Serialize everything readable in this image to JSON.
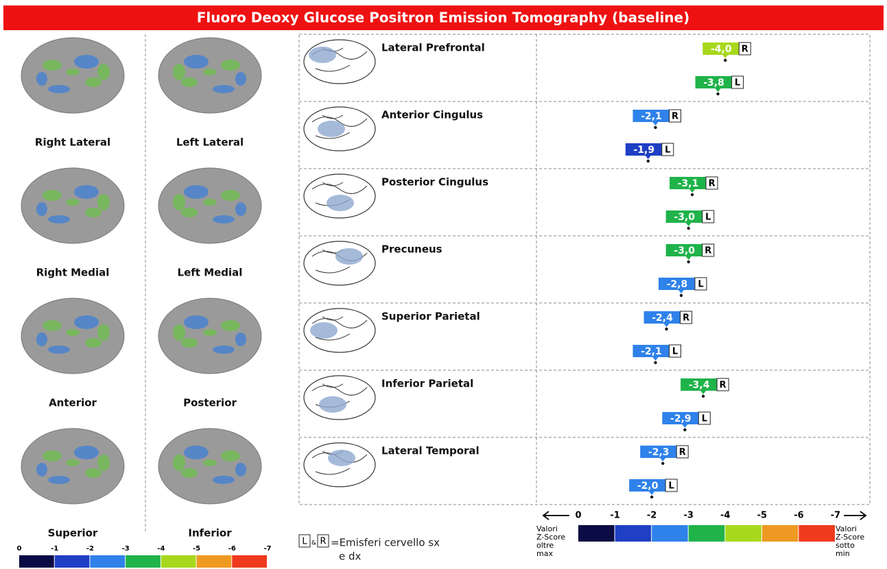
{
  "header": {
    "title": "Fluoro Deoxy Glucose Positron Emission Tomography (baseline)"
  },
  "views": [
    {
      "label": "Right Lateral"
    },
    {
      "label": "Left Lateral"
    },
    {
      "label": "Right Medial"
    },
    {
      "label": "Left Medial"
    },
    {
      "label": "Anterior"
    },
    {
      "label": "Posterior"
    },
    {
      "label": "Superior"
    },
    {
      "label": "Inferior"
    }
  ],
  "regions": [
    {
      "name": "Lateral Prefrontal",
      "markers": [
        {
          "side": "R",
          "value": -4.0,
          "value_label": "-4,0"
        },
        {
          "side": "L",
          "value": -3.8,
          "value_label": "-3,8"
        }
      ]
    },
    {
      "name": "Anterior Cingulus",
      "markers": [
        {
          "side": "R",
          "value": -2.1,
          "value_label": "-2,1"
        },
        {
          "side": "L",
          "value": -1.9,
          "value_label": "-1,9"
        }
      ]
    },
    {
      "name": "Posterior Cingulus",
      "markers": [
        {
          "side": "R",
          "value": -3.1,
          "value_label": "-3,1"
        },
        {
          "side": "L",
          "value": -3.0,
          "value_label": "-3,0"
        }
      ]
    },
    {
      "name": "Precuneus",
      "markers": [
        {
          "side": "R",
          "value": -3.0,
          "value_label": "-3,0"
        },
        {
          "side": "L",
          "value": -2.8,
          "value_label": "-2,8"
        }
      ]
    },
    {
      "name": "Superior Parietal",
      "markers": [
        {
          "side": "R",
          "value": -2.4,
          "value_label": "-2,4"
        },
        {
          "side": "L",
          "value": -2.1,
          "value_label": "-2,1"
        }
      ]
    },
    {
      "name": "Inferior Parietal",
      "markers": [
        {
          "side": "R",
          "value": -3.4,
          "value_label": "-3,4"
        },
        {
          "side": "L",
          "value": -2.9,
          "value_label": "-2,9"
        }
      ]
    },
    {
      "name": "Lateral Temporal",
      "markers": [
        {
          "side": "R",
          "value": -2.3,
          "value_label": "-2,3"
        },
        {
          "side": "L",
          "value": -2.0,
          "value_label": "-2,0"
        }
      ]
    }
  ],
  "scale": {
    "xlim": [
      0,
      -7
    ],
    "xticks": [
      0,
      -1,
      -2,
      -3,
      -4,
      -5,
      -6,
      -7
    ],
    "colors": [
      "#0b0b45",
      "#1f3fc4",
      "#2f82ea",
      "#1fb34a",
      "#a8d81c",
      "#ee9a22",
      "#f03a1e"
    ]
  },
  "legend": {
    "left": "L",
    "amp": "&",
    "right": "R",
    "text": [
      "=Emisferi cervello sx",
      "e dx"
    ]
  },
  "scale_notes": {
    "left": [
      "Valori",
      "Z-Score",
      "oltre",
      "max"
    ],
    "right": [
      "Valori",
      "Z-Score",
      "sotto",
      "min"
    ]
  }
}
